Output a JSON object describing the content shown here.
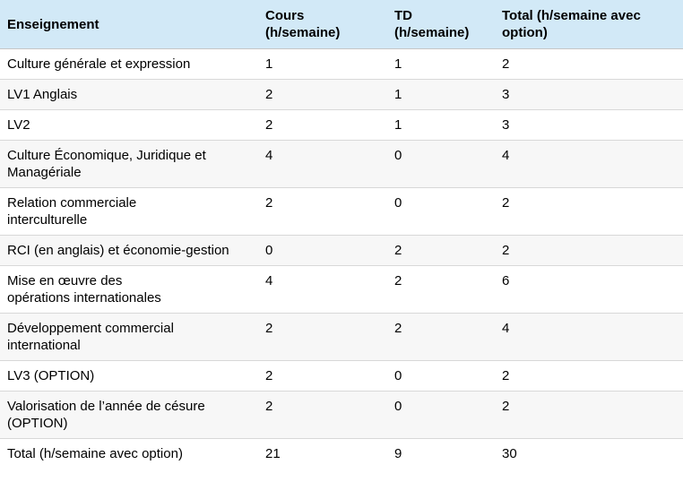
{
  "colors": {
    "header_bg": "#d2e9f7",
    "row_alt_bg": "#f7f7f7",
    "border": "#d8d8d8",
    "text": "#000000"
  },
  "table": {
    "columns": [
      {
        "label": "Enseignement"
      },
      {
        "label": "Cours\n(h/semaine)"
      },
      {
        "label": "TD\n(h/semaine)"
      },
      {
        "label": "Total (h/semaine avec\noption)"
      }
    ],
    "rows": [
      {
        "enseignement": "Culture générale et expression",
        "cours": "1",
        "td": "1",
        "total": "2"
      },
      {
        "enseignement": "LV1 Anglais",
        "cours": "2",
        "td": "1",
        "total": "3"
      },
      {
        "enseignement": "LV2",
        "cours": "2",
        "td": "1",
        "total": "3"
      },
      {
        "enseignement": "Culture Économique, Juridique et\nManagériale",
        "cours": "4",
        "td": "0",
        "total": "4"
      },
      {
        "enseignement": "Relation commerciale\ninterculturelle",
        "cours": "2",
        "td": "0",
        "total": "2"
      },
      {
        "enseignement": "RCI (en anglais) et économie-gestion",
        "cours": "0",
        "td": "2",
        "total": "2"
      },
      {
        "enseignement": "Mise en œuvre des\nopérations internationales",
        "cours": "4",
        "td": "2",
        "total": "6"
      },
      {
        "enseignement": "Développement commercial\ninternational",
        "cours": "2",
        "td": "2",
        "total": "4"
      },
      {
        "enseignement": "LV3 (OPTION)",
        "cours": "2",
        "td": "0",
        "total": "2"
      },
      {
        "enseignement": "Valorisation de l’année de césure\n(OPTION)",
        "cours": "2",
        "td": "0",
        "total": "2"
      },
      {
        "enseignement": "Total (h/semaine avec option)",
        "cours": "21",
        "td": "9",
        "total": "30"
      }
    ]
  }
}
